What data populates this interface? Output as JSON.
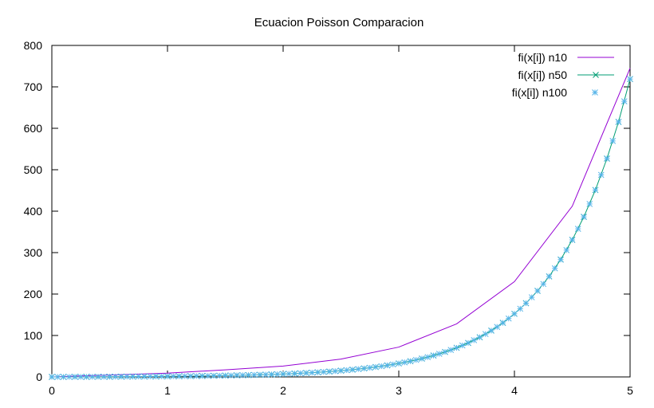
{
  "chart_data": {
    "type": "line",
    "title": "Ecuacion Poisson Comparacion",
    "xlabel": "",
    "ylabel": "",
    "xlim": [
      0,
      5
    ],
    "ylim": [
      0,
      800
    ],
    "x_ticks": [
      0,
      1,
      2,
      3,
      4,
      5
    ],
    "y_ticks": [
      0,
      100,
      200,
      300,
      400,
      500,
      600,
      700,
      800
    ],
    "legend_position": "top-right",
    "grid": false,
    "series": [
      {
        "name": "fi(x[i]) n10",
        "style": "line",
        "color": "#9400d3",
        "x": [
          0,
          0.5,
          1,
          1.5,
          2,
          2.5,
          3,
          3.5,
          4,
          4.5,
          5
        ],
        "y": [
          0,
          4.6,
          9.2,
          17.1,
          26.2,
          43.0,
          72.0,
          128.0,
          230.0,
          412.0,
          745.0
        ]
      },
      {
        "name": "fi(x[i]) n50",
        "style": "linespoints",
        "marker": "x",
        "color": "#009e73",
        "x": "linspace:0:5:51",
        "formula": "exponential-fit"
      },
      {
        "name": "fi(x[i]) n100",
        "style": "points",
        "marker": "*",
        "color": "#56b4e9",
        "x": "linspace:0:5:101",
        "formula": "exponential-fit"
      }
    ]
  }
}
